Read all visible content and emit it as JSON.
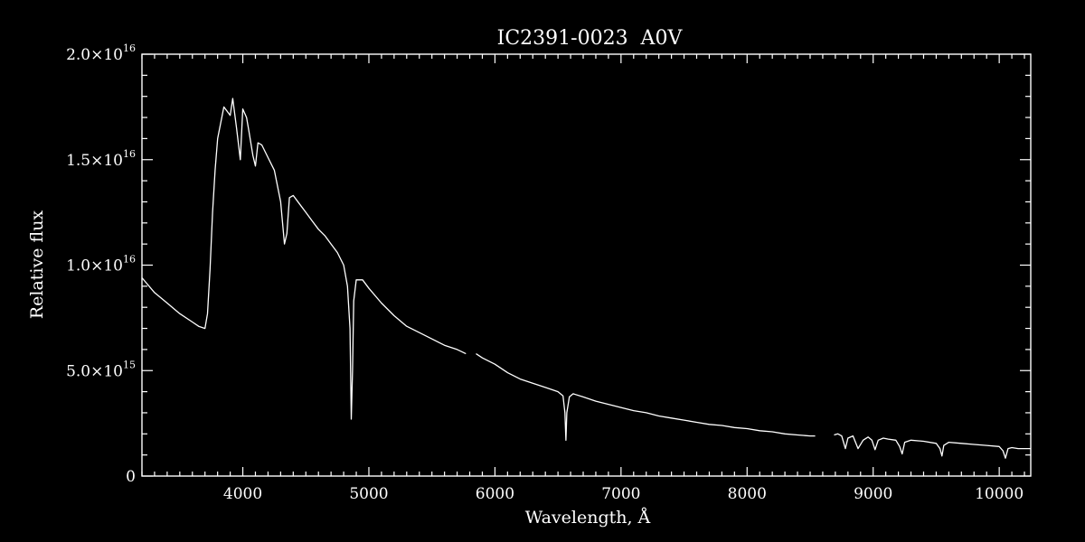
{
  "chart_data": {
    "type": "line",
    "title": "IC2391-0023  A0V",
    "xlabel": "Wavelength, Å",
    "ylabel": "Relative flux",
    "xlim": [
      3200,
      10250
    ],
    "ylim": [
      0,
      2e+16
    ],
    "xticks": [
      {
        "value": 4000,
        "label": "4000"
      },
      {
        "value": 5000,
        "label": "5000"
      },
      {
        "value": 6000,
        "label": "6000"
      },
      {
        "value": 7000,
        "label": "7000"
      },
      {
        "value": 8000,
        "label": "8000"
      },
      {
        "value": 9000,
        "label": "9000"
      },
      {
        "value": 10000,
        "label": "10000"
      }
    ],
    "yticks": [
      {
        "value": 0,
        "mant": "0",
        "exp": ""
      },
      {
        "value": 5000000000000000.0,
        "mant": "5.0×10",
        "exp": "15"
      },
      {
        "value": 1e+16,
        "mant": "1.0×10",
        "exp": "16"
      },
      {
        "value": 1.5e+16,
        "mant": "1.5×10",
        "exp": "16"
      },
      {
        "value": 2e+16,
        "mant": "2.0×10",
        "exp": "16"
      }
    ],
    "x_minor_step": 100,
    "y_minor_step": 1000000000000000.0,
    "grid": false,
    "line_color": "#ffffff",
    "series": [
      {
        "x": [
          3200,
          3300,
          3400,
          3500,
          3600,
          3650,
          3700,
          3720,
          3740,
          3760,
          3780,
          3800,
          3850,
          3900,
          3920,
          3950,
          3980,
          4000,
          4030,
          4050,
          4080,
          4100,
          4120,
          4150,
          4200,
          4250,
          4300,
          4330,
          4350,
          4370,
          4400,
          4450,
          4500,
          4550,
          4600,
          4650,
          4700,
          4750,
          4800,
          4830,
          4850,
          4860,
          4870,
          4880,
          4900,
          4950,
          5000,
          5100,
          5200,
          5300,
          5400,
          5500,
          5600,
          5700,
          5770
        ],
        "y": [
          9400000000000000.0,
          8700000000000000.0,
          8200000000000000.0,
          7700000000000000.0,
          7300000000000000.0,
          7100000000000000.0,
          7000000000000000.0,
          7700000000000000.0,
          9800000000000000.0,
          1.25e+16,
          1.45e+16,
          1.6e+16,
          1.75e+16,
          1.71e+16,
          1.79e+16,
          1.65e+16,
          1.5e+16,
          1.74e+16,
          1.7e+16,
          1.63e+16,
          1.52e+16,
          1.47e+16,
          1.58e+16,
          1.57e+16,
          1.51e+16,
          1.45e+16,
          1.3e+16,
          1.1e+16,
          1.15e+16,
          1.32e+16,
          1.33e+16,
          1.29e+16,
          1.25e+16,
          1.21e+16,
          1.17e+16,
          1.14e+16,
          1.1e+16,
          1.06e+16,
          1e+16,
          9000000000000000.0,
          7000000000000000.0,
          2700000000000000.0,
          5000000000000000.0,
          8300000000000000.0,
          9300000000000000.0,
          9300000000000000.0,
          8900000000000000.0,
          8200000000000000.0,
          7600000000000000.0,
          7100000000000000.0,
          6800000000000000.0,
          6500000000000000.0,
          6200000000000000.0,
          6000000000000000.0,
          5800000000000000.0
        ]
      },
      {
        "x": [
          5850,
          5900,
          6000,
          6100,
          6200,
          6300,
          6400,
          6450,
          6500,
          6540,
          6555,
          6563,
          6570,
          6590,
          6620,
          6700,
          6800,
          6900,
          7000,
          7100,
          7200,
          7300,
          7400,
          7500,
          7600,
          7700,
          7800,
          7900,
          8000,
          8100,
          8200,
          8300,
          8400,
          8500,
          8540
        ],
        "y": [
          5800000000000000.0,
          5600000000000000.0,
          5300000000000000.0,
          4900000000000000.0,
          4600000000000000.0,
          4400000000000000.0,
          4200000000000000.0,
          4100000000000000.0,
          4000000000000000.0,
          3800000000000000.0,
          3000000000000000.0,
          1700000000000000.0,
          3000000000000000.0,
          3750000000000000.0,
          3900000000000000.0,
          3750000000000000.0,
          3550000000000000.0,
          3400000000000000.0,
          3250000000000000.0,
          3100000000000000.0,
          3000000000000000.0,
          2850000000000000.0,
          2750000000000000.0,
          2650000000000000.0,
          2550000000000000.0,
          2450000000000000.0,
          2400000000000000.0,
          2300000000000000.0,
          2250000000000000.0,
          2150000000000000.0,
          2100000000000000.0,
          2000000000000000.0,
          1950000000000000.0,
          1900000000000000.0,
          1900000000000000.0
        ]
      },
      {
        "x": [
          8690,
          8720,
          8750,
          8780,
          8800,
          8840,
          8860,
          8880,
          8920,
          8960,
          8990,
          9015,
          9040,
          9080,
          9120,
          9180,
          9210,
          9230,
          9250,
          9300,
          9400,
          9500,
          9530,
          9546,
          9560,
          9600,
          9700,
          9800,
          9900,
          10000,
          10030,
          10049,
          10070,
          10100,
          10150,
          10250
        ],
        "y": [
          1950000000000000.0,
          2000000000000000.0,
          1900000000000000.0,
          1300000000000000.0,
          1800000000000000.0,
          1900000000000000.0,
          1600000000000000.0,
          1300000000000000.0,
          1700000000000000.0,
          1850000000000000.0,
          1700000000000000.0,
          1250000000000000.0,
          1700000000000000.0,
          1800000000000000.0,
          1750000000000000.0,
          1700000000000000.0,
          1400000000000000.0,
          1050000000000000.0,
          1600000000000000.0,
          1700000000000000.0,
          1650000000000000.0,
          1550000000000000.0,
          1300000000000000.0,
          950000000000000.0,
          1450000000000000.0,
          1600000000000000.0,
          1550000000000000.0,
          1500000000000000.0,
          1450000000000000.0,
          1400000000000000.0,
          1200000000000000.0,
          850000000000000.0,
          1300000000000000.0,
          1350000000000000.0,
          1300000000000000.0,
          1300000000000000.0
        ]
      }
    ]
  }
}
